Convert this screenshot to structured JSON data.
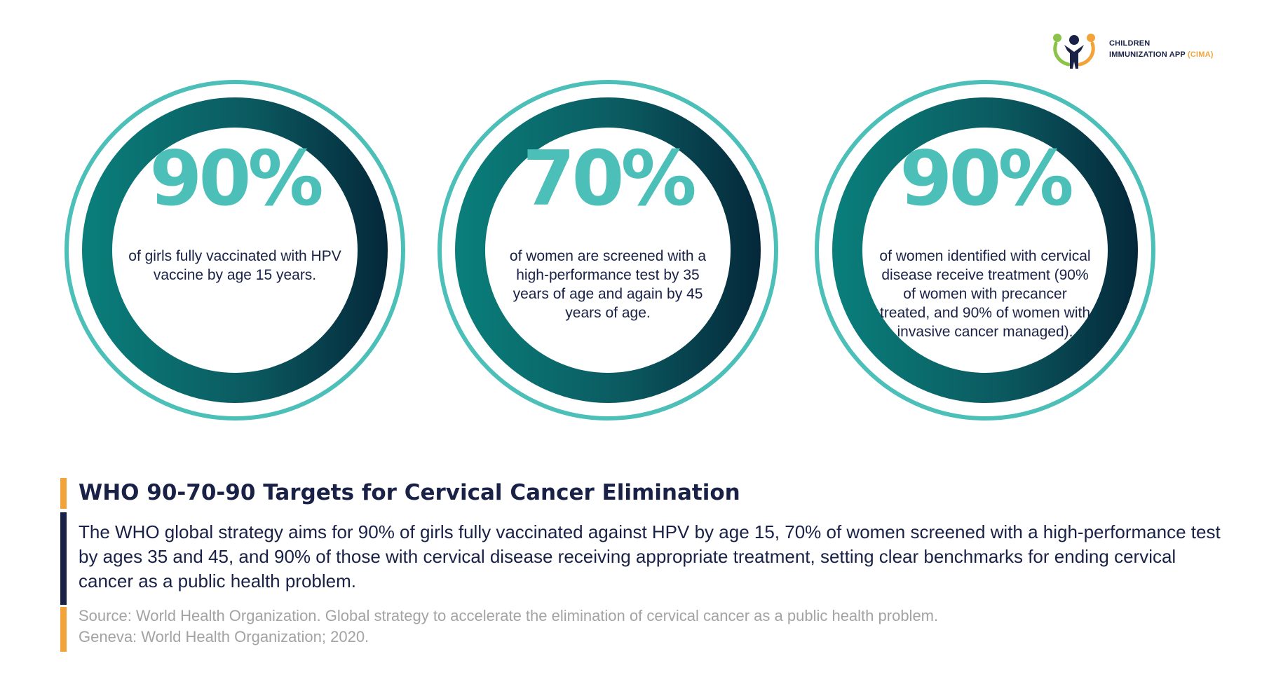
{
  "logo": {
    "line1": "CHILDREN",
    "line2_main": "IMMUNIZATION APP ",
    "line2_accent": "(CIMA)"
  },
  "colors": {
    "teal_light": "#4cbfb8",
    "teal_dark": "#0a7a78",
    "navy_dark": "#052b3d",
    "text_navy": "#1a2147",
    "accent_orange": "#f2a33a",
    "source_gray": "#a3a3a3"
  },
  "targets": [
    {
      "value": "90%",
      "description": "of girls fully vaccinated with HPV vaccine by age 15 years."
    },
    {
      "value": "70%",
      "description": "of women are screened with a high-performance test by 35 years of age and again by 45 years of age."
    },
    {
      "value": "90%",
      "description": "of women identified with cervical disease receive treatment (90% of women with precancer treated, and 90% of women with invasive cancer managed)."
    }
  ],
  "heading": "WHO 90-70-90 Targets for Cervical Cancer Elimination",
  "body": "The WHO global strategy aims for 90% of girls fully vaccinated against HPV by age 15, 70% of women screened with a high-performance test by ages 35 and 45, and 90% of those with cervical disease receiving appropriate treatment, setting clear benchmarks for ending cervical cancer as a public health problem.",
  "source": "Source: World Health Organization. Global strategy to accelerate the elimination of cervical cancer as a public health problem. Geneva: World Health Organization; 2020."
}
